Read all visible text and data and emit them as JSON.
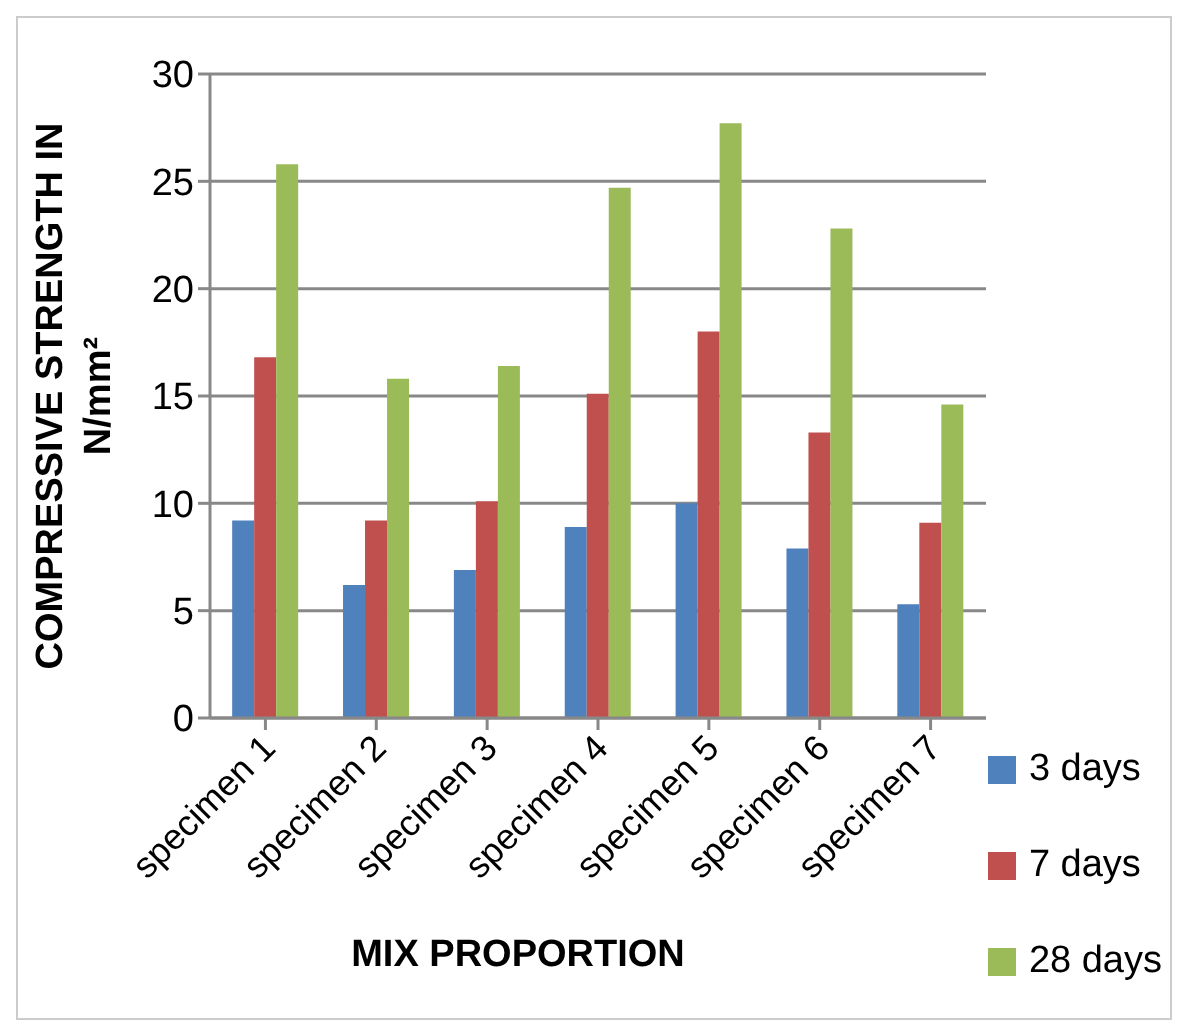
{
  "chart_data": {
    "type": "bar",
    "xlabel": "MIX PROPORTION",
    "ylabel": "COMPRESSIVE STRENGTH IN N/mm²",
    "categories": [
      "specimen 1",
      "specimen 2",
      "specimen 3",
      "specimen 4",
      "specimen 5",
      "specimen 6",
      "specimen 7"
    ],
    "series": [
      {
        "name": "3 days",
        "color": "#4f81bd",
        "values": [
          9.2,
          6.2,
          6.9,
          8.9,
          10.0,
          7.9,
          5.3
        ]
      },
      {
        "name": "7 days",
        "color": "#c0504d",
        "values": [
          16.8,
          9.2,
          10.1,
          15.1,
          18.0,
          13.3,
          9.1
        ]
      },
      {
        "name": "28 days",
        "color": "#9bbb59",
        "values": [
          25.8,
          15.8,
          16.4,
          24.7,
          27.7,
          22.8,
          14.6
        ]
      }
    ],
    "ylim": [
      0,
      30
    ],
    "yticks": [
      0,
      5,
      10,
      15,
      20,
      25,
      30
    ],
    "grid": "y",
    "legend": "bottom right"
  }
}
